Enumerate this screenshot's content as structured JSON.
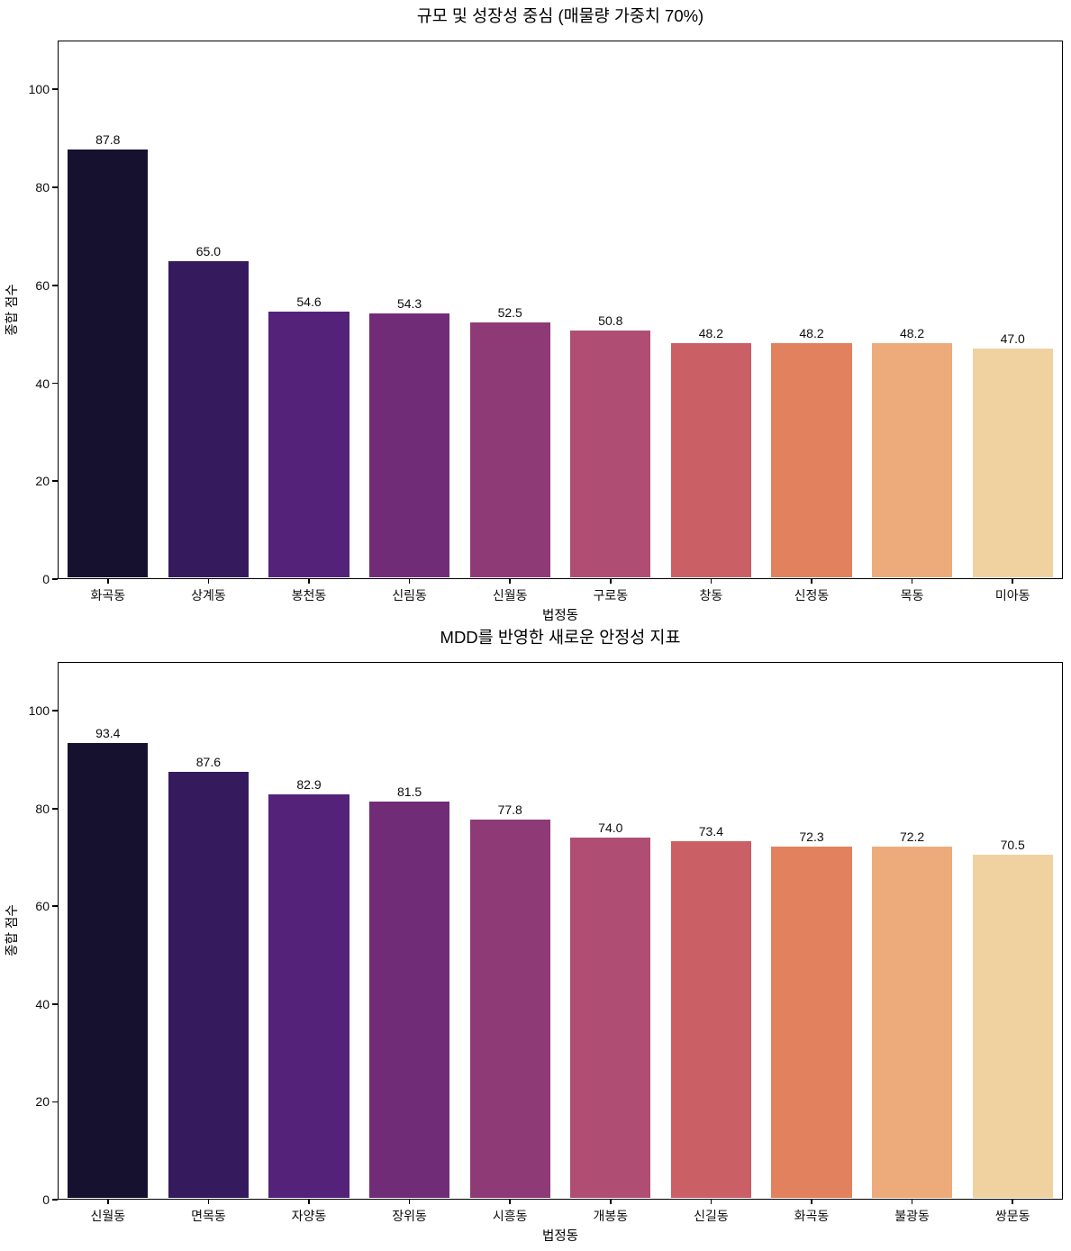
{
  "figure": {
    "background_color": "#ffffff",
    "text_color": "#000000",
    "spine_color": "#000000"
  },
  "chart_data": [
    {
      "type": "bar",
      "title": "규모 및 성장성 중심 (매물량 가중치 70%)",
      "xlabel": "법정동",
      "ylabel": "종합 점수",
      "ylim": [
        0,
        110
      ],
      "yticks": [
        0,
        20,
        40,
        60,
        80,
        100
      ],
      "grid": false,
      "legend": null,
      "categories": [
        "화곡동",
        "상계동",
        "봉천동",
        "신림동",
        "신월동",
        "구로동",
        "창동",
        "신정동",
        "목동",
        "미아동"
      ],
      "values": [
        87.8,
        65.0,
        54.6,
        54.3,
        52.5,
        50.8,
        48.2,
        48.2,
        48.2,
        47.0
      ],
      "value_labels": [
        "87.8",
        "65.0",
        "54.6",
        "54.3",
        "52.5",
        "50.8",
        "48.2",
        "48.2",
        "48.2",
        "47.0"
      ],
      "bar_colors": [
        "#171130",
        "#351b5e",
        "#552279",
        "#712c78",
        "#8e3a76",
        "#b04d73",
        "#ca5f66",
        "#e1815e",
        "#edab7b",
        "#f0d2a0"
      ]
    },
    {
      "type": "bar",
      "title": "MDD를 반영한 새로운 안정성 지표",
      "xlabel": "법정동",
      "ylabel": "종합 점수",
      "ylim": [
        0,
        110
      ],
      "yticks": [
        0,
        20,
        40,
        60,
        80,
        100
      ],
      "grid": false,
      "legend": null,
      "categories": [
        "신월동",
        "면목동",
        "자양동",
        "장위동",
        "시흥동",
        "개봉동",
        "신길동",
        "화곡동",
        "불광동",
        "쌍문동"
      ],
      "values": [
        93.4,
        87.6,
        82.9,
        81.5,
        77.8,
        74.0,
        73.4,
        72.3,
        72.2,
        70.5
      ],
      "value_labels": [
        "93.4",
        "87.6",
        "82.9",
        "81.5",
        "77.8",
        "74.0",
        "73.4",
        "72.3",
        "72.2",
        "70.5"
      ],
      "bar_colors": [
        "#171130",
        "#351b5e",
        "#552279",
        "#712c78",
        "#8e3a76",
        "#b04d73",
        "#ca5f66",
        "#e1815e",
        "#edab7b",
        "#f0d2a0"
      ]
    }
  ]
}
